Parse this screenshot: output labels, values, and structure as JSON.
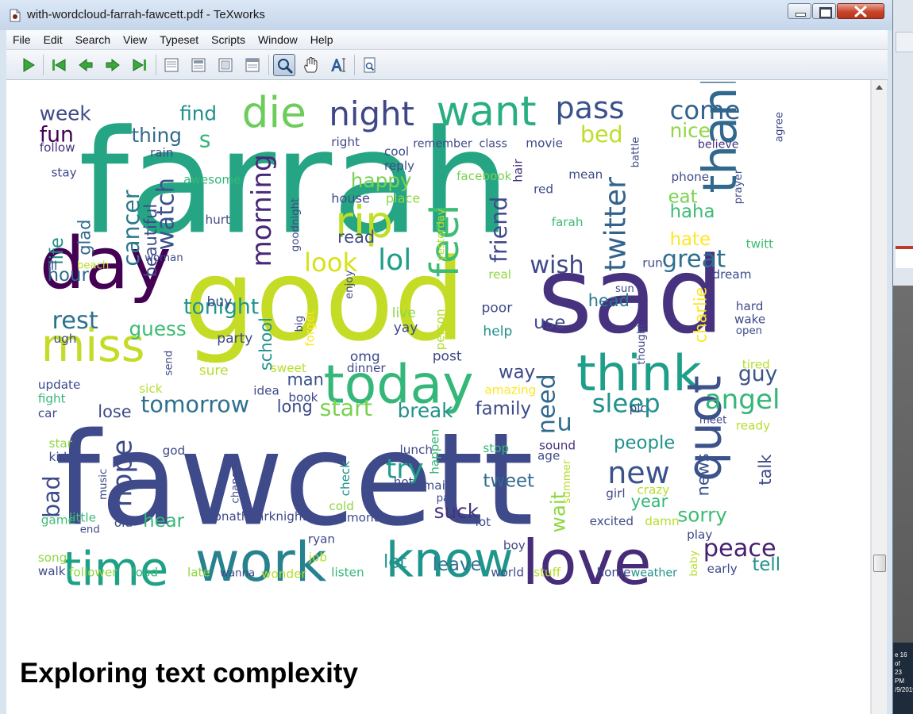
{
  "window": {
    "title": "with-wordcloud-farrah-fawcett.pdf - TeXworks",
    "accent": "#c7452a"
  },
  "menu": [
    "File",
    "Edit",
    "Search",
    "View",
    "Typeset",
    "Scripts",
    "Window",
    "Help"
  ],
  "toolbar": {
    "icons": [
      "typeset-run-icon",
      "first-page-icon",
      "previous-page-icon",
      "next-page-icon",
      "last-page-icon",
      "single-page-icon",
      "continuous-page-icon",
      "double-page-icon",
      "full-width-icon",
      "magnify-icon",
      "scroll-hand-icon",
      "select-text-icon",
      "find-icon"
    ],
    "active": "magnify-icon"
  },
  "document": {
    "heading": "Exploring text complexity",
    "wordcloud": {
      "palette": "viridis",
      "words": [
        {
          "text": "farrah",
          "color": "#25a584"
        },
        {
          "text": "good",
          "color": "#c4dc25"
        },
        {
          "text": "sad",
          "color": "#46327e"
        },
        {
          "text": "fawcett",
          "color": "#3e4a89"
        },
        {
          "text": "day",
          "color": "#440154"
        },
        {
          "text": "miss",
          "color": "#c4dc25"
        },
        {
          "text": "today",
          "color": "#35b779"
        },
        {
          "text": "think",
          "color": "#1f9e89"
        },
        {
          "text": "work",
          "color": "#26828e"
        },
        {
          "text": "time",
          "color": "#1fa187"
        },
        {
          "text": "know",
          "color": "#1f968b"
        },
        {
          "text": "love",
          "color": "#472c7a"
        },
        {
          "text": "quot",
          "color": "#3b528b"
        },
        {
          "text": "thank",
          "color": "#31688e"
        },
        {
          "text": "want",
          "color": "#29af7f"
        },
        {
          "text": "die",
          "color": "#6ccd5a"
        },
        {
          "text": "night",
          "color": "#3f4788"
        },
        {
          "text": "pass",
          "color": "#3b528b"
        },
        {
          "text": "come",
          "color": "#33638d"
        },
        {
          "text": "rip",
          "color": "#bddf26"
        },
        {
          "text": "feel",
          "color": "#3dbc74"
        },
        {
          "text": "morning",
          "color": "#482878"
        },
        {
          "text": "lol",
          "color": "#1f9e89"
        },
        {
          "text": "look",
          "color": "#d8e219"
        },
        {
          "text": "wish",
          "color": "#3e4a89"
        },
        {
          "text": "great",
          "color": "#2d708e"
        },
        {
          "text": "twitter",
          "color": "#33638d"
        },
        {
          "text": "friend",
          "color": "#3e4a89"
        },
        {
          "text": "watch",
          "color": "#3b528b"
        },
        {
          "text": "cancer",
          "color": "#2a788e"
        },
        {
          "text": "rest",
          "color": "#2c728e"
        },
        {
          "text": "guess",
          "color": "#3dbc74"
        },
        {
          "text": "tomorrow",
          "color": "#2d708e"
        },
        {
          "text": "angel",
          "color": "#35b779"
        },
        {
          "text": "sleep",
          "color": "#21918c"
        },
        {
          "text": "peace",
          "color": "#481f70"
        },
        {
          "text": "new",
          "color": "#3b528b"
        },
        {
          "text": "hope",
          "color": "#3e4a89"
        },
        {
          "text": "try",
          "color": "#1f9e89"
        },
        {
          "text": "need",
          "color": "#31688e"
        },
        {
          "text": "u",
          "color": "#2c728e"
        },
        {
          "text": "week",
          "color": "#3e4a89"
        },
        {
          "text": "fun",
          "color": "#440154"
        },
        {
          "text": "find",
          "color": "#21918c"
        },
        {
          "text": "thing",
          "color": "#31688e"
        },
        {
          "text": "s",
          "color": "#35b779"
        },
        {
          "text": "bed",
          "color": "#bddf26"
        },
        {
          "text": "nice",
          "color": "#8fd744"
        },
        {
          "text": "happy",
          "color": "#7ad151"
        },
        {
          "text": "life",
          "color": "#21918c"
        },
        {
          "text": "glad",
          "color": "#31688e"
        },
        {
          "text": "hour",
          "color": "#31688e"
        },
        {
          "text": "beautiful",
          "color": "#3e4a89"
        },
        {
          "text": "tonight",
          "color": "#1f968b"
        },
        {
          "text": "read",
          "color": "#3e4a89"
        },
        {
          "text": "haha",
          "color": "#3dbc74"
        },
        {
          "text": "eat",
          "color": "#7ad151"
        },
        {
          "text": "hate",
          "color": "#fde725"
        },
        {
          "text": "phone",
          "color": "#3e4a89"
        },
        {
          "text": "head",
          "color": "#2a788e"
        },
        {
          "text": "use",
          "color": "#3e4a89"
        },
        {
          "text": "way",
          "color": "#3e4a89"
        },
        {
          "text": "guy",
          "color": "#3b528b"
        },
        {
          "text": "man",
          "color": "#3b528b"
        },
        {
          "text": "start",
          "color": "#7ad151"
        },
        {
          "text": "break",
          "color": "#21918c"
        },
        {
          "text": "family",
          "color": "#3e4a89"
        },
        {
          "text": "long",
          "color": "#3e4a89"
        },
        {
          "text": "lose",
          "color": "#3e4a89"
        },
        {
          "text": "school",
          "color": "#21918c"
        },
        {
          "text": "people",
          "color": "#21918c"
        },
        {
          "text": "tweet",
          "color": "#31688e"
        },
        {
          "text": "year",
          "color": "#35b779"
        },
        {
          "text": "sorry",
          "color": "#3dbc74"
        },
        {
          "text": "suck",
          "color": "#46327e"
        },
        {
          "text": "hear",
          "color": "#35b779"
        },
        {
          "text": "let",
          "color": "#21918c"
        },
        {
          "text": "leave",
          "color": "#2c728e"
        },
        {
          "text": "tell",
          "color": "#21918c"
        },
        {
          "text": "bad",
          "color": "#3e4a89"
        },
        {
          "text": "news",
          "color": "#3b528b"
        },
        {
          "text": "talk",
          "color": "#3e4a89"
        },
        {
          "text": "wait",
          "color": "#8fd744"
        },
        {
          "text": "charlie",
          "color": "#fde725"
        },
        {
          "text": "buy",
          "color": "#3e4a89"
        },
        {
          "text": "poor",
          "color": "#3e4a89"
        },
        {
          "text": "live",
          "color": "#8fd744"
        },
        {
          "text": "yay",
          "color": "#3e4a89"
        },
        {
          "text": "help",
          "color": "#21918c"
        },
        {
          "text": "post",
          "color": "#3e4a89"
        },
        {
          "text": "omg",
          "color": "#3e4a89"
        },
        {
          "text": "ugh",
          "color": "#3e4a89"
        },
        {
          "text": "party",
          "color": "#3e4a89"
        },
        {
          "text": "sure",
          "color": "#b5de2b"
        },
        {
          "text": "sweet",
          "color": "#b5de2b"
        },
        {
          "text": "dinner",
          "color": "#3e4a89"
        },
        {
          "text": "update",
          "color": "#3e4a89"
        },
        {
          "text": "fight",
          "color": "#35b779"
        },
        {
          "text": "car",
          "color": "#3e4a89"
        },
        {
          "text": "sick",
          "color": "#b5de2b"
        },
        {
          "text": "idea",
          "color": "#3e4a89"
        },
        {
          "text": "book",
          "color": "#3e4a89"
        },
        {
          "text": "amazing",
          "color": "#fde725"
        },
        {
          "text": "follow",
          "color": "#46327e"
        },
        {
          "text": "right",
          "color": "#3e4a89"
        },
        {
          "text": "cool",
          "color": "#3e4a89"
        },
        {
          "text": "remember",
          "color": "#3e4a89"
        },
        {
          "text": "class",
          "color": "#3e4a89"
        },
        {
          "text": "movie",
          "color": "#3e4a89"
        },
        {
          "text": "believe",
          "color": "#46327e"
        },
        {
          "text": "rain",
          "color": "#3e4a89"
        },
        {
          "text": "reply",
          "color": "#3e4a89"
        },
        {
          "text": "stay",
          "color": "#3e4a89"
        },
        {
          "text": "awesome",
          "color": "#35b779"
        },
        {
          "text": "facebook",
          "color": "#7ad151"
        },
        {
          "text": "mean",
          "color": "#3e4a89"
        },
        {
          "text": "red",
          "color": "#3e4a89"
        },
        {
          "text": "house",
          "color": "#3e4a89"
        },
        {
          "text": "place",
          "color": "#8fd744"
        },
        {
          "text": "hurt",
          "color": "#3e4a89"
        },
        {
          "text": "farah",
          "color": "#3dbc74"
        },
        {
          "text": "twitt",
          "color": "#3dbc74"
        },
        {
          "text": "run",
          "color": "#3e4a89"
        },
        {
          "text": "real",
          "color": "#8fd744"
        },
        {
          "text": "dream",
          "color": "#3e4a89"
        },
        {
          "text": "hard",
          "color": "#3e4a89"
        },
        {
          "text": "wake",
          "color": "#3e4a89"
        },
        {
          "text": "open",
          "color": "#3e4a89"
        },
        {
          "text": "tired",
          "color": "#b5de2b"
        },
        {
          "text": "ready",
          "color": "#b5de2b"
        },
        {
          "text": "meet",
          "color": "#3e4a89"
        },
        {
          "text": "pic",
          "color": "#3e4a89"
        },
        {
          "text": "god",
          "color": "#3e4a89"
        },
        {
          "text": "star",
          "color": "#8fd744"
        },
        {
          "text": "kid",
          "color": "#3e4a89"
        },
        {
          "text": "lunch",
          "color": "#3e4a89"
        },
        {
          "text": "stop",
          "color": "#35b779"
        },
        {
          "text": "sound",
          "color": "#46327e"
        },
        {
          "text": "age",
          "color": "#3e4a89"
        },
        {
          "text": "hot",
          "color": "#3e4a89"
        },
        {
          "text": "email",
          "color": "#3e4a89"
        },
        {
          "text": "pay",
          "color": "#3e4a89"
        },
        {
          "text": "girl",
          "color": "#3e4a89"
        },
        {
          "text": "crazy",
          "color": "#b5de2b"
        },
        {
          "text": "cold",
          "color": "#8fd744"
        },
        {
          "text": "month",
          "color": "#3e4a89"
        },
        {
          "text": "lot",
          "color": "#3e4a89"
        },
        {
          "text": "excited",
          "color": "#3e4a89"
        },
        {
          "text": "damn",
          "color": "#b5de2b"
        },
        {
          "text": "play",
          "color": "#3e4a89"
        },
        {
          "text": "game",
          "color": "#3dbc74"
        },
        {
          "text": "little",
          "color": "#3dbc74"
        },
        {
          "text": "old",
          "color": "#3e4a89"
        },
        {
          "text": "end",
          "color": "#3e4a89"
        },
        {
          "text": "jonathanrknight",
          "color": "#3e4a89"
        },
        {
          "text": "ryan",
          "color": "#3e4a89"
        },
        {
          "text": "job",
          "color": "#b5de2b"
        },
        {
          "text": "boy",
          "color": "#3e4a89"
        },
        {
          "text": "song",
          "color": "#8fd744"
        },
        {
          "text": "walk",
          "color": "#3e4a89"
        },
        {
          "text": "follower",
          "color": "#8fd744"
        },
        {
          "text": "food",
          "color": "#35b779"
        },
        {
          "text": "late",
          "color": "#8fd744"
        },
        {
          "text": "wanna",
          "color": "#3e4a89"
        },
        {
          "text": "wonder",
          "color": "#b5de2b"
        },
        {
          "text": "listen",
          "color": "#35b779"
        },
        {
          "text": "world",
          "color": "#3e4a89"
        },
        {
          "text": "stuff",
          "color": "#b5de2b"
        },
        {
          "text": "home",
          "color": "#3e4a89"
        },
        {
          "text": "weather",
          "color": "#21918c"
        },
        {
          "text": "early",
          "color": "#3e4a89"
        },
        {
          "text": "ill",
          "color": "#3e4a89"
        },
        {
          "text": "beach",
          "color": "#b5de2b"
        },
        {
          "text": "woman",
          "color": "#3e4a89"
        },
        {
          "text": "send",
          "color": "#3e4a89"
        },
        {
          "text": "enjoy",
          "color": "#3e4a89"
        },
        {
          "text": "forget",
          "color": "#fde725"
        },
        {
          "text": "person",
          "color": "#b5de2b"
        },
        {
          "text": "yesterday",
          "color": "#b5de2b"
        },
        {
          "text": "goodnight",
          "color": "#3e4a89"
        },
        {
          "text": "hair",
          "color": "#46327e"
        },
        {
          "text": "battle",
          "color": "#3e4a89"
        },
        {
          "text": "agree",
          "color": "#3e4a89"
        },
        {
          "text": "prayer",
          "color": "#3e4a89"
        },
        {
          "text": "thought",
          "color": "#3e4a89"
        },
        {
          "text": "sun",
          "color": "#3e4a89"
        },
        {
          "text": "big",
          "color": "#3e4a89"
        },
        {
          "text": "music",
          "color": "#3e4a89"
        },
        {
          "text": "change",
          "color": "#3e4a89"
        },
        {
          "text": "check",
          "color": "#21918c"
        },
        {
          "text": "happen",
          "color": "#35b779"
        },
        {
          "text": "summer",
          "color": "#b5de2b"
        },
        {
          "text": "baby",
          "color": "#b5de2b"
        }
      ]
    }
  },
  "desktop": {
    "clock_text": [
      "e 16 of",
      "23 PM",
      "/9/2019"
    ]
  }
}
